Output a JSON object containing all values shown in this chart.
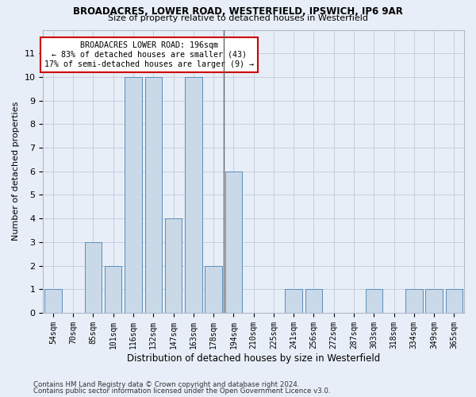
{
  "title1": "BROADACRES, LOWER ROAD, WESTERFIELD, IPSWICH, IP6 9AR",
  "title2": "Size of property relative to detached houses in Westerfield",
  "xlabel": "Distribution of detached houses by size in Westerfield",
  "ylabel": "Number of detached properties",
  "categories": [
    "54sqm",
    "70sqm",
    "85sqm",
    "101sqm",
    "116sqm",
    "132sqm",
    "147sqm",
    "163sqm",
    "178sqm",
    "194sqm",
    "210sqm",
    "225sqm",
    "241sqm",
    "256sqm",
    "272sqm",
    "287sqm",
    "303sqm",
    "318sqm",
    "334sqm",
    "349sqm",
    "365sqm"
  ],
  "values": [
    1,
    0,
    3,
    2,
    10,
    10,
    4,
    10,
    2,
    6,
    0,
    0,
    1,
    1,
    0,
    0,
    1,
    0,
    1,
    1,
    1
  ],
  "bar_color": "#c9d9e8",
  "bar_edge_color": "#5b8db8",
  "vline_x": 8.5,
  "vline_color": "#666666",
  "annotation_title": "BROADACRES LOWER ROAD: 196sqm",
  "annotation_line1": "← 83% of detached houses are smaller (43)",
  "annotation_line2": "17% of semi-detached houses are larger (9) →",
  "annotation_box_color": "#ffffff",
  "annotation_box_edge": "#cc0000",
  "ylim": [
    0,
    12
  ],
  "yticks": [
    0,
    1,
    2,
    3,
    4,
    5,
    6,
    7,
    8,
    9,
    10,
    11
  ],
  "footer1": "Contains HM Land Registry data © Crown copyright and database right 2024.",
  "footer2": "Contains public sector information licensed under the Open Government Licence v3.0.",
  "background_color": "#e8eef7"
}
